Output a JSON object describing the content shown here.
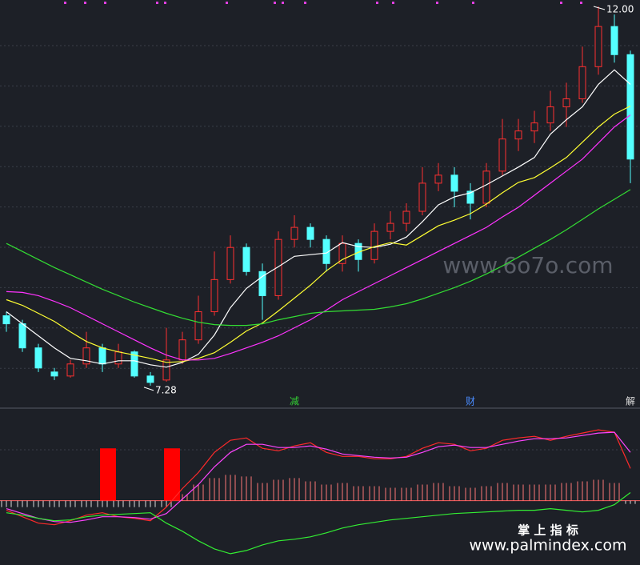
{
  "chart_data": [
    {
      "type": "candlestick",
      "ylim": [
        7.0,
        12.08
      ],
      "up_color": "#ff3030",
      "down_color": "#54ffff",
      "ohlc": [
        [
          8.15,
          8.2,
          7.95,
          8.05
        ],
        [
          8.05,
          8.1,
          7.7,
          7.75
        ],
        [
          7.75,
          7.8,
          7.45,
          7.5
        ],
        [
          7.45,
          7.5,
          7.35,
          7.4
        ],
        [
          7.4,
          7.6,
          7.38,
          7.55
        ],
        [
          7.55,
          7.95,
          7.5,
          7.75
        ],
        [
          7.75,
          7.8,
          7.45,
          7.55
        ],
        [
          7.55,
          7.8,
          7.5,
          7.7
        ],
        [
          7.7,
          7.72,
          7.38,
          7.4
        ],
        [
          7.4,
          7.45,
          7.28,
          7.32
        ],
        [
          7.35,
          8.0,
          7.33,
          7.6
        ],
        [
          7.6,
          7.95,
          7.55,
          7.85
        ],
        [
          7.85,
          8.4,
          7.8,
          8.2
        ],
        [
          8.2,
          8.95,
          8.15,
          8.6
        ],
        [
          8.6,
          9.15,
          8.55,
          9.0
        ],
        [
          9.0,
          9.05,
          8.65,
          8.7
        ],
        [
          8.7,
          8.8,
          8.1,
          8.4
        ],
        [
          8.4,
          9.2,
          8.35,
          9.1
        ],
        [
          9.1,
          9.4,
          9.0,
          9.25
        ],
        [
          9.25,
          9.3,
          9.0,
          9.1
        ],
        [
          9.1,
          9.15,
          8.7,
          8.8
        ],
        [
          8.8,
          9.15,
          8.7,
          9.05
        ],
        [
          9.05,
          9.1,
          8.7,
          8.85
        ],
        [
          8.85,
          9.3,
          8.8,
          9.2
        ],
        [
          9.2,
          9.45,
          9.1,
          9.3
        ],
        [
          9.3,
          9.55,
          9.2,
          9.45
        ],
        [
          9.45,
          10.0,
          9.4,
          9.8
        ],
        [
          9.8,
          10.05,
          9.7,
          9.9
        ],
        [
          9.9,
          10.0,
          9.5,
          9.7
        ],
        [
          9.7,
          9.8,
          9.35,
          9.55
        ],
        [
          9.55,
          10.05,
          9.5,
          9.95
        ],
        [
          9.95,
          10.6,
          9.9,
          10.35
        ],
        [
          10.35,
          10.6,
          10.2,
          10.45
        ],
        [
          10.45,
          10.7,
          10.3,
          10.55
        ],
        [
          10.55,
          10.95,
          10.45,
          10.75
        ],
        [
          10.75,
          11.05,
          10.5,
          10.85
        ],
        [
          10.85,
          11.5,
          10.8,
          11.25
        ],
        [
          11.25,
          12.0,
          11.15,
          11.75
        ],
        [
          11.75,
          11.9,
          11.3,
          11.4
        ],
        [
          11.4,
          11.45,
          9.8,
          10.1
        ]
      ],
      "series": [
        {
          "color": "#ffffff",
          "values": [
            8.2,
            8.05,
            7.9,
            7.75,
            7.62,
            7.59,
            7.55,
            7.59,
            7.59,
            7.54,
            7.51,
            7.57,
            7.67,
            7.91,
            8.25,
            8.49,
            8.64,
            8.76,
            8.89,
            8.91,
            8.93,
            9.06,
            9.01,
            9.0,
            9.04,
            9.13,
            9.32,
            9.53,
            9.63,
            9.68,
            9.78,
            9.89,
            10.0,
            10.12,
            10.41,
            10.59,
            10.75,
            11.03,
            11.21,
            11.03
          ]
        },
        {
          "color": "#ffff33",
          "values": [
            8.35,
            8.28,
            8.18,
            8.08,
            7.95,
            7.83,
            7.75,
            7.7,
            7.66,
            7.62,
            7.57,
            7.58,
            7.62,
            7.69,
            7.82,
            7.96,
            8.06,
            8.21,
            8.37,
            8.53,
            8.71,
            8.85,
            8.94,
            9.01,
            9.06,
            9.03,
            9.15,
            9.27,
            9.34,
            9.42,
            9.54,
            9.68,
            9.81,
            9.87,
            9.99,
            10.12,
            10.31,
            10.5,
            10.66,
            10.76
          ]
        },
        {
          "color": "#ff33ff",
          "values": [
            8.45,
            8.44,
            8.4,
            8.33,
            8.25,
            8.15,
            8.05,
            7.95,
            7.85,
            7.75,
            7.66,
            7.6,
            7.6,
            7.62,
            7.68,
            7.75,
            7.82,
            7.9,
            8.0,
            8.1,
            8.22,
            8.35,
            8.45,
            8.55,
            8.65,
            8.75,
            8.85,
            8.95,
            9.05,
            9.15,
            9.25,
            9.38,
            9.5,
            9.65,
            9.8,
            9.95,
            10.1,
            10.3,
            10.5,
            10.65
          ]
        },
        {
          "color": "#33dd33",
          "values": [
            9.05,
            8.95,
            8.85,
            8.75,
            8.66,
            8.57,
            8.48,
            8.4,
            8.32,
            8.25,
            8.18,
            8.12,
            8.07,
            8.04,
            8.03,
            8.03,
            8.05,
            8.1,
            8.14,
            8.18,
            8.2,
            8.21,
            8.22,
            8.23,
            8.26,
            8.3,
            8.36,
            8.43,
            8.5,
            8.58,
            8.67,
            8.77,
            8.88,
            8.99,
            9.1,
            9.22,
            9.35,
            9.48,
            9.6,
            9.72
          ]
        }
      ],
      "high_label": {
        "value": 12,
        "label": "12.00",
        "index": 37
      },
      "low_label": {
        "value": 7.28,
        "label": "7.28",
        "index": 9
      },
      "events": [
        {
          "label": "减",
          "index": 18,
          "color": "#33cc33"
        },
        {
          "label": "财",
          "index": 29,
          "color": "#4a8cff"
        },
        {
          "label": "解",
          "index": 39,
          "color": "#dddddd"
        }
      ]
    },
    {
      "type": "indicator",
      "ylim": [
        -80,
        110
      ],
      "histogram": [
        -8,
        -8,
        -8,
        -8,
        -8,
        -8,
        -8,
        -8,
        -8,
        -8,
        -8,
        8,
        20,
        28,
        32,
        30,
        22,
        26,
        28,
        24,
        20,
        22,
        18,
        18,
        16,
        16,
        20,
        22,
        18,
        16,
        18,
        22,
        20,
        20,
        20,
        22,
        24,
        26,
        22,
        -4
      ],
      "signal": {
        "color": "#ff0000",
        "values": [
          null,
          null,
          null,
          null,
          null,
          null,
          65,
          null,
          null,
          null,
          65,
          null,
          null,
          null,
          null,
          null,
          null,
          null,
          null,
          null,
          null,
          null,
          null,
          null,
          null,
          null,
          null,
          null,
          null,
          null,
          null,
          null,
          null,
          null,
          null,
          null,
          null,
          null,
          null,
          null
        ]
      },
      "series": [
        {
          "color": "#ff2a2a",
          "values": [
            -12,
            -20,
            -28,
            -30,
            -25,
            -18,
            -15,
            -20,
            -22,
            -25,
            -8,
            15,
            35,
            60,
            75,
            78,
            65,
            62,
            68,
            72,
            60,
            55,
            55,
            52,
            52,
            55,
            65,
            72,
            70,
            62,
            65,
            75,
            78,
            80,
            75,
            80,
            84,
            88,
            85,
            40
          ]
        },
        {
          "color": "#ff44ff",
          "values": [
            -10,
            -16,
            -22,
            -26,
            -27,
            -24,
            -20,
            -20,
            -21,
            -23,
            -16,
            2,
            20,
            42,
            60,
            70,
            70,
            66,
            66,
            68,
            64,
            58,
            56,
            54,
            53,
            54,
            60,
            67,
            69,
            66,
            66,
            70,
            74,
            77,
            77,
            78,
            81,
            84,
            85,
            60
          ]
        },
        {
          "color": "#33ee33",
          "values": [
            -15,
            -18,
            -22,
            -25,
            -24,
            -20,
            -18,
            -17,
            -16,
            -15,
            -28,
            -38,
            -50,
            -60,
            -66,
            -62,
            -55,
            -50,
            -48,
            -45,
            -40,
            -34,
            -30,
            -27,
            -24,
            -22,
            -20,
            -18,
            -16,
            -15,
            -14,
            -13,
            -12,
            -12,
            -10,
            -12,
            -14,
            -12,
            -5,
            10
          ]
        }
      ]
    }
  ],
  "watermark": "www.6o7o.com",
  "footer": {
    "title": "掌 上 指 标",
    "url": "www.palmindex.com"
  }
}
